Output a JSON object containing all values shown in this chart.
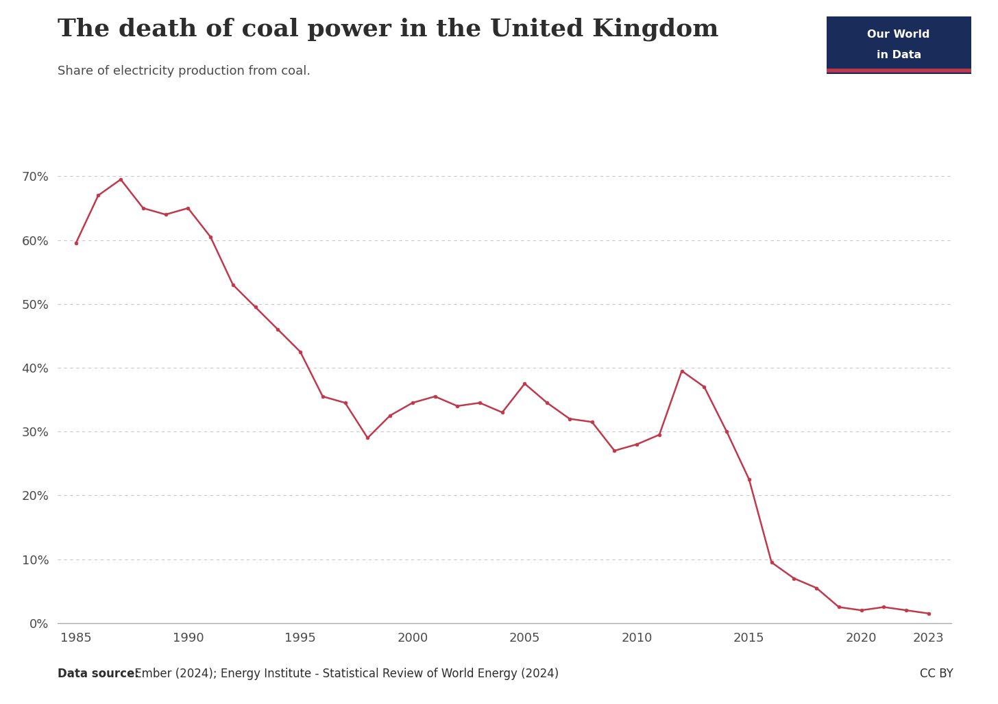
{
  "title": "The death of coal power in the United Kingdom",
  "subtitle": "Share of electricity production from coal.",
  "data_source_bold": "Data source:",
  "data_source_regular": " Ember (2024); Energy Institute - Statistical Review of World Energy (2024)",
  "cc_label": "CC BY",
  "years": [
    1985,
    1986,
    1987,
    1988,
    1989,
    1990,
    1991,
    1992,
    1993,
    1994,
    1995,
    1996,
    1997,
    1998,
    1999,
    2000,
    2001,
    2002,
    2003,
    2004,
    2005,
    2006,
    2007,
    2008,
    2009,
    2010,
    2011,
    2012,
    2013,
    2014,
    2015,
    2016,
    2017,
    2018,
    2019,
    2020,
    2021,
    2022,
    2023
  ],
  "values": [
    59.5,
    67.0,
    69.5,
    65.0,
    64.0,
    65.0,
    60.5,
    53.0,
    49.5,
    46.0,
    42.5,
    35.5,
    34.5,
    29.0,
    32.5,
    34.5,
    35.5,
    34.0,
    34.5,
    33.0,
    37.5,
    34.5,
    32.0,
    31.5,
    27.0,
    28.0,
    29.5,
    39.5,
    37.0,
    30.0,
    22.5,
    9.5,
    7.0,
    5.5,
    2.5,
    2.0,
    2.5,
    2.0,
    1.5
  ],
  "line_color": "#C0394B",
  "marker_color": "#C0394B",
  "background_color": "#FFFFFF",
  "grid_color": "#C8C8C8",
  "axis_color": "#AAAAAA",
  "title_color": "#2d2d2d",
  "subtitle_color": "#4a4a4a",
  "tick_label_color": "#4a4a4a",
  "ylim": [
    0,
    0.75
  ],
  "yticks": [
    0.0,
    0.1,
    0.2,
    0.3,
    0.4,
    0.5,
    0.6,
    0.7
  ],
  "ytick_labels": [
    "0%",
    "10%",
    "20%",
    "30%",
    "40%",
    "50%",
    "60%",
    "70%"
  ],
  "xlim": [
    1984.2,
    2024.0
  ],
  "xticks": [
    1985,
    1990,
    1995,
    2000,
    2005,
    2010,
    2015,
    2020,
    2023
  ],
  "owid_box_color": "#1a2d5a",
  "owid_underline_color": "#C0394B",
  "title_fontsize": 26,
  "subtitle_fontsize": 13,
  "tick_fontsize": 13,
  "source_fontsize": 12,
  "line_width": 1.8,
  "marker_size": 3.5
}
